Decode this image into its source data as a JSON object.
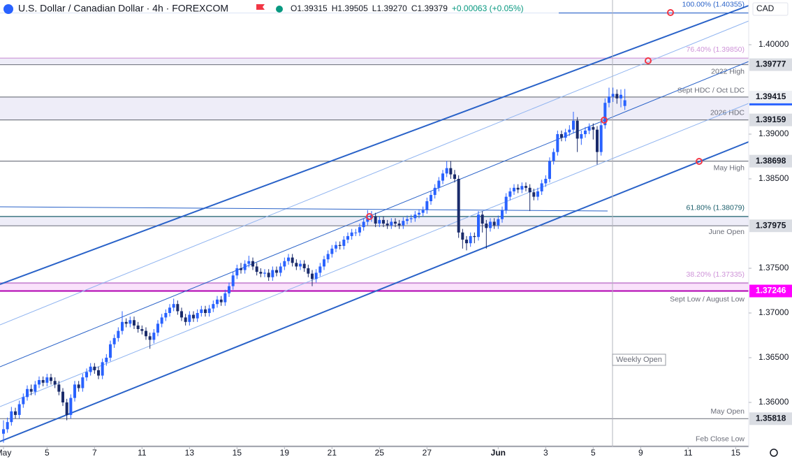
{
  "chart_data": {
    "type": "candlestick",
    "title": "U.S. Dollar / Canadian Dollar · 4h · FOREXCOM",
    "ohlc_legend": [
      "O1.39315",
      "H1.39505",
      "L1.39270",
      "C1.39379",
      "+0.00063 (+0.05%)"
    ],
    "currency": "CAD",
    "annotation": "Weekly Open",
    "up_color": "#2962ff",
    "down_color": "#1a2b6b",
    "ylim": [
      1.355,
      1.405
    ],
    "yticks": [
      {
        "value": 1.4,
        "label": "1.40000"
      },
      {
        "value": 1.39,
        "label": "1.39000"
      },
      {
        "value": 1.385,
        "label": "1.38500"
      },
      {
        "value": 1.375,
        "label": "1.37500"
      },
      {
        "value": 1.37,
        "label": "1.37000"
      },
      {
        "value": 1.365,
        "label": "1.36500"
      },
      {
        "value": 1.36,
        "label": "1.36000"
      }
    ],
    "xticks": [
      {
        "value": 0,
        "label": "May"
      },
      {
        "value": 11,
        "label": "5"
      },
      {
        "value": 23,
        "label": "7"
      },
      {
        "value": 35,
        "label": "11"
      },
      {
        "value": 47,
        "label": "13"
      },
      {
        "value": 59,
        "label": "15"
      },
      {
        "value": 71,
        "label": "19"
      },
      {
        "value": 83,
        "label": "21"
      },
      {
        "value": 95,
        "label": "25"
      },
      {
        "value": 107,
        "label": "27"
      },
      {
        "value": 125,
        "label": "Jun"
      },
      {
        "value": 137,
        "label": "3"
      },
      {
        "value": 149,
        "label": "5"
      },
      {
        "value": 161,
        "label": "9"
      },
      {
        "value": 173,
        "label": "11"
      },
      {
        "value": 185,
        "label": "15"
      }
    ],
    "levels": [
      {
        "label": "100.00% (1.40355)",
        "value": 1.40355,
        "color": "#2962c8",
        "badge": false
      },
      {
        "label": "76.40% (1.39850)",
        "value": 1.3985,
        "color": "#ce93d8",
        "badge": false
      },
      {
        "label": "2022 High",
        "value": 1.39777,
        "color": "#787b86",
        "badge": true
      },
      {
        "label": "Sept HDC / Oct LDC",
        "value": 1.39415,
        "color": "#787b86",
        "badge": true
      },
      {
        "label": "2026 HDC",
        "value": 1.39159,
        "color": "#787b86",
        "badge": true
      },
      {
        "label": "May High",
        "value": 1.38698,
        "color": "#787b86",
        "badge": true
      },
      {
        "label": "61.80% (1.38079)",
        "value": 1.38079,
        "color": "#1b5e6b",
        "badge": false
      },
      {
        "label": "June Open",
        "value": 1.37975,
        "color": "#787b86",
        "badge": true
      },
      {
        "label": "38.20% (1.37335)",
        "value": 1.37335,
        "color": "#ce93d8",
        "badge": false
      },
      {
        "label": "Sept Low / August Low",
        "value": 1.37246,
        "color": "#b000b0",
        "badge": true
      },
      {
        "label": "May Open",
        "value": 1.35818,
        "color": "#787b86",
        "badge": true
      },
      {
        "label": "Feb Close Low",
        "value": 1.3551,
        "color": "#787b86",
        "badge": false
      }
    ],
    "open": [
      1.3565,
      1.357,
      1.3578,
      1.359,
      1.3586,
      1.3598,
      1.3606,
      1.3615,
      1.3612,
      1.362,
      1.3625,
      1.3622,
      1.3628,
      1.3624,
      1.362,
      1.3612,
      1.36,
      1.3586,
      1.3605,
      1.362,
      1.3616,
      1.3628,
      1.3634,
      1.364,
      1.3636,
      1.363,
      1.3645,
      1.365,
      1.3665,
      1.3672,
      1.368,
      1.369,
      1.3688,
      1.3692,
      1.3686,
      1.3682,
      1.368,
      1.3674,
      1.367,
      1.3678,
      1.3688,
      1.3695,
      1.37,
      1.3706,
      1.371,
      1.3702,
      1.3695,
      1.369,
      1.3698,
      1.3694,
      1.37,
      1.3704,
      1.37,
      1.3705,
      1.371,
      1.3715,
      1.3712,
      1.3722,
      1.373,
      1.3742,
      1.375,
      1.3748,
      1.3755,
      1.3758,
      1.3752,
      1.3746,
      1.3744,
      1.3745,
      1.374,
      1.3748,
      1.3745,
      1.3752,
      1.3758,
      1.3762,
      1.3756,
      1.3752,
      1.3755,
      1.375,
      1.3744,
      1.3738,
      1.3745,
      1.3752,
      1.376,
      1.3766,
      1.3772,
      1.3776,
      1.3775,
      1.3782,
      1.3786,
      1.379,
      1.379,
      1.3796,
      1.3802,
      1.3806,
      1.3808,
      1.38,
      1.3804,
      1.38,
      1.3798,
      1.3802,
      1.38,
      1.3798,
      1.3803,
      1.3805,
      1.3806,
      1.381,
      1.3812,
      1.3815,
      1.3825,
      1.3832,
      1.384,
      1.3848,
      1.3856,
      1.3862,
      1.3855,
      1.385,
      1.379,
      1.3782,
      1.3778,
      1.3786,
      1.3785,
      1.381,
      1.38,
      1.3795,
      1.3802,
      1.3798,
      1.3805,
      1.3815,
      1.383,
      1.3836,
      1.384,
      1.3838,
      1.3842,
      1.384,
      1.3835,
      1.383,
      1.3836,
      1.3845,
      1.385,
      1.387,
      1.388,
      1.39,
      1.3896,
      1.3902,
      1.3905,
      1.3915,
      1.3895,
      1.39,
      1.3904,
      1.3908,
      1.3905,
      1.388,
      1.391,
      1.3935,
      1.3942,
      1.3945,
      1.394,
      1.39315
    ],
    "high": [
      1.358,
      1.3583,
      1.3595,
      1.3594,
      1.3602,
      1.361,
      1.3619,
      1.362,
      1.3624,
      1.3629,
      1.3629,
      1.3632,
      1.3632,
      1.3628,
      1.3624,
      1.3616,
      1.3604,
      1.3609,
      1.3624,
      1.3624,
      1.3632,
      1.3638,
      1.3644,
      1.3644,
      1.364,
      1.3649,
      1.3654,
      1.3669,
      1.3676,
      1.3684,
      1.3702,
      1.3694,
      1.3696,
      1.3696,
      1.369,
      1.3686,
      1.3684,
      1.3678,
      1.3682,
      1.3692,
      1.3699,
      1.3704,
      1.371,
      1.3716,
      1.3714,
      1.3706,
      1.3699,
      1.3702,
      1.3702,
      1.3704,
      1.3708,
      1.3708,
      1.3709,
      1.3714,
      1.3719,
      1.3719,
      1.3726,
      1.3734,
      1.3746,
      1.3754,
      1.3756,
      1.3759,
      1.3764,
      1.3762,
      1.3756,
      1.375,
      1.3749,
      1.3749,
      1.3752,
      1.3752,
      1.3756,
      1.3762,
      1.3766,
      1.3766,
      1.376,
      1.3759,
      1.3759,
      1.3754,
      1.3748,
      1.3749,
      1.3756,
      1.3764,
      1.377,
      1.3776,
      1.378,
      1.378,
      1.3786,
      1.379,
      1.3794,
      1.3794,
      1.38,
      1.3806,
      1.3815,
      1.3814,
      1.3812,
      1.3808,
      1.3808,
      1.3804,
      1.3806,
      1.3806,
      1.3804,
      1.3807,
      1.3809,
      1.381,
      1.3814,
      1.3816,
      1.3819,
      1.3829,
      1.3836,
      1.3844,
      1.3852,
      1.386,
      1.387,
      1.387,
      1.386,
      1.3854,
      1.3794,
      1.3786,
      1.379,
      1.379,
      1.3814,
      1.3814,
      1.3804,
      1.3806,
      1.3806,
      1.3809,
      1.3819,
      1.3834,
      1.384,
      1.3844,
      1.3844,
      1.3846,
      1.3846,
      1.3844,
      1.3839,
      1.384,
      1.3849,
      1.3854,
      1.3874,
      1.3884,
      1.3904,
      1.3904,
      1.3906,
      1.391,
      1.3925,
      1.3919,
      1.3904,
      1.3908,
      1.3912,
      1.3912,
      1.3909,
      1.3914,
      1.394,
      1.3952,
      1.3952,
      1.395,
      1.395,
      1.39505
    ],
    "low": [
      1.3555,
      1.3566,
      1.3574,
      1.3582,
      1.3582,
      1.3594,
      1.3602,
      1.3608,
      1.3608,
      1.3616,
      1.3618,
      1.3618,
      1.362,
      1.3616,
      1.3608,
      1.3596,
      1.358,
      1.3582,
      1.3601,
      1.3612,
      1.3612,
      1.3624,
      1.363,
      1.3632,
      1.3626,
      1.3626,
      1.3641,
      1.3646,
      1.3661,
      1.3668,
      1.3676,
      1.3684,
      1.3684,
      1.3682,
      1.3678,
      1.3676,
      1.367,
      1.366,
      1.3666,
      1.3674,
      1.3684,
      1.3691,
      1.3696,
      1.3702,
      1.3698,
      1.3691,
      1.3686,
      1.3686,
      1.369,
      1.369,
      1.3696,
      1.3696,
      1.3696,
      1.3701,
      1.3706,
      1.3708,
      1.3708,
      1.3718,
      1.3726,
      1.3738,
      1.3744,
      1.3744,
      1.3751,
      1.3748,
      1.3742,
      1.374,
      1.374,
      1.3736,
      1.3736,
      1.3741,
      1.3741,
      1.3748,
      1.3754,
      1.3752,
      1.3748,
      1.3748,
      1.3746,
      1.374,
      1.373,
      1.3734,
      1.3741,
      1.3748,
      1.3756,
      1.3762,
      1.3768,
      1.3771,
      1.3771,
      1.3778,
      1.3782,
      1.3786,
      1.3786,
      1.3792,
      1.3798,
      1.3802,
      1.3796,
      1.3796,
      1.3796,
      1.3794,
      1.3794,
      1.3796,
      1.3794,
      1.3794,
      1.3799,
      1.3801,
      1.3802,
      1.3806,
      1.3808,
      1.3811,
      1.3821,
      1.3828,
      1.3836,
      1.3844,
      1.3852,
      1.385,
      1.3846,
      1.3784,
      1.3772,
      1.377,
      1.3774,
      1.3778,
      1.3781,
      1.379,
      1.3772,
      1.3791,
      1.3794,
      1.3794,
      1.3801,
      1.3811,
      1.3826,
      1.3832,
      1.3834,
      1.3834,
      1.3836,
      1.3814,
      1.3826,
      1.3826,
      1.3832,
      1.3841,
      1.3846,
      1.3866,
      1.3876,
      1.3892,
      1.3892,
      1.3898,
      1.3901,
      1.388,
      1.3888,
      1.3896,
      1.39,
      1.3894,
      1.3866,
      1.3876,
      1.3906,
      1.393,
      1.3936,
      1.3934,
      1.393,
      1.3927
    ],
    "close": [
      1.357,
      1.3578,
      1.359,
      1.3586,
      1.3598,
      1.3606,
      1.3615,
      1.3612,
      1.362,
      1.3625,
      1.3622,
      1.3628,
      1.3624,
      1.362,
      1.3612,
      1.36,
      1.3586,
      1.3605,
      1.362,
      1.3616,
      1.3628,
      1.3634,
      1.364,
      1.3636,
      1.363,
      1.3645,
      1.365,
      1.3665,
      1.3672,
      1.368,
      1.369,
      1.3688,
      1.3692,
      1.3686,
      1.3682,
      1.368,
      1.3674,
      1.367,
      1.3678,
      1.3688,
      1.3695,
      1.37,
      1.3706,
      1.371,
      1.3702,
      1.3695,
      1.369,
      1.3698,
      1.3694,
      1.37,
      1.3704,
      1.37,
      1.3705,
      1.371,
      1.3715,
      1.3712,
      1.3722,
      1.373,
      1.3742,
      1.375,
      1.3748,
      1.3755,
      1.3758,
      1.3752,
      1.3746,
      1.3744,
      1.3745,
      1.374,
      1.3748,
      1.3745,
      1.3752,
      1.3758,
      1.3762,
      1.3756,
      1.3752,
      1.3755,
      1.375,
      1.3744,
      1.3738,
      1.3745,
      1.3752,
      1.376,
      1.3766,
      1.3772,
      1.3776,
      1.3775,
      1.3782,
      1.3786,
      1.379,
      1.379,
      1.3796,
      1.3802,
      1.3806,
      1.3808,
      1.38,
      1.3804,
      1.38,
      1.3798,
      1.3802,
      1.38,
      1.3798,
      1.3803,
      1.3805,
      1.3806,
      1.381,
      1.3812,
      1.3815,
      1.3825,
      1.3832,
      1.384,
      1.3848,
      1.3856,
      1.3862,
      1.3855,
      1.385,
      1.379,
      1.3782,
      1.3778,
      1.3786,
      1.3785,
      1.381,
      1.38,
      1.3795,
      1.3802,
      1.3798,
      1.3805,
      1.3815,
      1.383,
      1.3836,
      1.384,
      1.3838,
      1.3842,
      1.384,
      1.3835,
      1.383,
      1.3836,
      1.3845,
      1.385,
      1.387,
      1.388,
      1.39,
      1.3896,
      1.3902,
      1.3905,
      1.3915,
      1.3895,
      1.39,
      1.3904,
      1.3908,
      1.3905,
      1.388,
      1.391,
      1.3935,
      1.3942,
      1.3945,
      1.394,
      1.3944,
      1.39379
    ]
  }
}
